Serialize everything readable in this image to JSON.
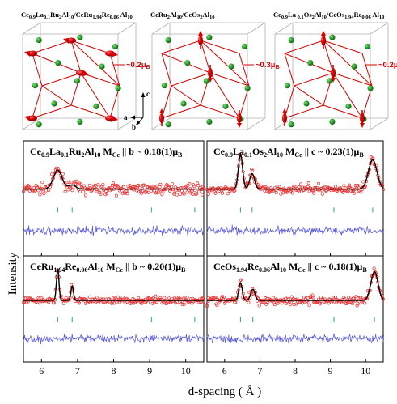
{
  "crystals": [
    {
      "title": [
        "Ce",
        "0.9",
        "La",
        "0.1",
        "Ru",
        "2",
        "Al",
        "10",
        "/CeRu",
        "1.94",
        "Re",
        "0.06",
        " Al",
        "10"
      ],
      "moment_label": "~0.2μ",
      "moment_sub": "B",
      "moment_direction": "b-axis"
    },
    {
      "title": [
        "CeRu",
        "2",
        "Al",
        "10",
        "/CeOs",
        "2",
        "Al",
        "10"
      ],
      "moment_label": "~0.3μ",
      "moment_sub": "B",
      "moment_direction": "c-axis"
    },
    {
      "title": [
        "Ce",
        "0.9",
        "La",
        " 0.1",
        "Os",
        "2",
        "Al",
        "10",
        "/CeOs",
        "1.94",
        "Re",
        "0.06",
        " Al",
        "10"
      ],
      "moment_label": "~0.2μ",
      "moment_sub": "B",
      "moment_direction": "c-axis"
    }
  ],
  "axes_triad": {
    "a": "a",
    "b": "b",
    "c": "c"
  },
  "colors": {
    "atom": "#2a9a2a",
    "moment": "#d40000",
    "bond": "#d40000",
    "obs": "#e83030",
    "fit": "#000000",
    "diff": "#5555dd",
    "bragg": "#2aa86a"
  },
  "shared_axes": {
    "xlabel": "d-spacing ( Å )",
    "ylabel": "Intensity",
    "xlim": [
      5.5,
      10.5
    ],
    "xticks": [
      "6",
      "7",
      "8",
      "9",
      "10"
    ]
  },
  "chart_data": [
    {
      "type": "scatter",
      "title_parts": [
        [
          "Ce",
          ""
        ],
        [
          "0.9",
          "sub"
        ],
        [
          "La",
          ""
        ],
        [
          "0.1",
          "sub"
        ],
        [
          "Ru",
          ""
        ],
        [
          "2",
          "sub"
        ],
        [
          "Al",
          ""
        ],
        [
          "10",
          "sub"
        ],
        [
          "  M",
          ""
        ],
        [
          "Ce",
          "sub"
        ],
        [
          " || b ~ 0.18(1)μ",
          ""
        ],
        [
          "B",
          "sub"
        ]
      ],
      "peaks": [
        {
          "d": 6.45,
          "height": 0.55,
          "width": 0.12
        },
        {
          "d": 6.85,
          "height": 0.12,
          "width": 0.1
        }
      ],
      "bragg_ticks": [
        6.45,
        6.85,
        9.05,
        10.25
      ],
      "noise": 0.14
    },
    {
      "type": "scatter",
      "title_parts": [
        [
          "Ce",
          ""
        ],
        [
          "0.9",
          "sub"
        ],
        [
          "La",
          ""
        ],
        [
          "0.1",
          "sub"
        ],
        [
          "Os",
          ""
        ],
        [
          "2",
          "sub"
        ],
        [
          "Al",
          ""
        ],
        [
          "10",
          "sub"
        ],
        [
          "  M",
          ""
        ],
        [
          "Ce",
          "sub"
        ],
        [
          " || c ~ 0.23(1)μ",
          ""
        ],
        [
          "B",
          "sub"
        ]
      ],
      "peaks": [
        {
          "d": 6.45,
          "height": 1.0,
          "width": 0.06
        },
        {
          "d": 6.78,
          "height": 0.45,
          "width": 0.07
        },
        {
          "d": 10.2,
          "height": 0.85,
          "width": 0.12
        }
      ],
      "bragg_ticks": [
        6.45,
        6.78,
        9.1,
        10.2
      ],
      "noise": 0.12
    },
    {
      "type": "scatter",
      "title_parts": [
        [
          "CeRu",
          ""
        ],
        [
          "1.94",
          "sub"
        ],
        [
          "Re",
          ""
        ],
        [
          "0.06",
          "sub"
        ],
        [
          "Al",
          ""
        ],
        [
          "10",
          "sub"
        ],
        [
          "  M",
          ""
        ],
        [
          "Ce",
          "sub"
        ],
        [
          " || b ~ 0.20(1)μ",
          ""
        ],
        [
          "B",
          "sub"
        ]
      ],
      "peaks": [
        {
          "d": 6.45,
          "height": 1.0,
          "width": 0.035
        },
        {
          "d": 6.85,
          "height": 0.45,
          "width": 0.035
        }
      ],
      "bragg_ticks": [
        6.45,
        6.85,
        9.05,
        10.25
      ],
      "noise": 0.1
    },
    {
      "type": "scatter",
      "title_parts": [
        [
          "CeOs",
          ""
        ],
        [
          "1.94",
          "sub"
        ],
        [
          "Re",
          ""
        ],
        [
          "0.06",
          "sub"
        ],
        [
          "Al",
          ""
        ],
        [
          "10",
          "sub"
        ],
        [
          "  M",
          ""
        ],
        [
          "Ce",
          "sub"
        ],
        [
          " || c ~ 0.18(1)μ",
          ""
        ],
        [
          "B",
          "sub"
        ]
      ],
      "peaks": [
        {
          "d": 6.45,
          "height": 0.55,
          "width": 0.05
        },
        {
          "d": 6.8,
          "height": 0.35,
          "width": 0.06
        },
        {
          "d": 10.25,
          "height": 0.9,
          "width": 0.1
        }
      ],
      "bragg_ticks": [
        6.45,
        6.8,
        9.1,
        10.25
      ],
      "noise": 0.14
    }
  ]
}
